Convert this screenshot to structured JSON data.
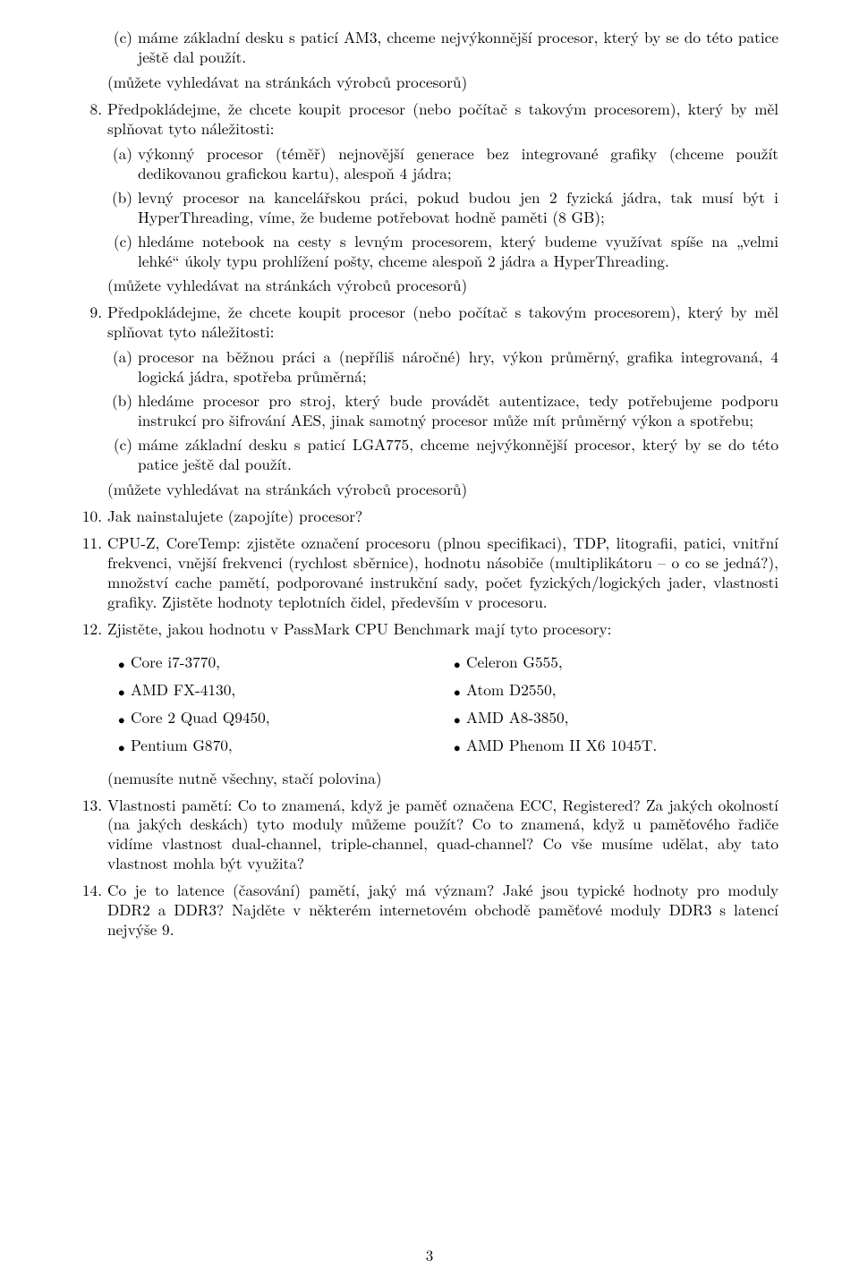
{
  "item7c": {
    "label": "(c)",
    "text": "máme základní desku s paticí AM3, chceme nejvýkonnější procesor, který by se do této patice ještě dal použít."
  },
  "note7": "(můžete vyhledávat na stránkách výrobců procesorů)",
  "q8": {
    "num": "8.",
    "intro": "Předpokládejme, že chcete koupit procesor (nebo počítač s takovým procesorem), který by měl splňovat tyto náležitosti:",
    "a": {
      "label": "(a)",
      "text": "výkonný procesor (téměř) nejnovější generace bez integrované grafiky (chceme použít dedikovanou grafickou kartu), alespoň 4 jádra;"
    },
    "b": {
      "label": "(b)",
      "text": "levný procesor na kancelářskou práci, pokud budou jen 2 fyzická jádra, tak musí být i HyperThreading, víme, že budeme potřebovat hodně paměti (8 GB);"
    },
    "c": {
      "label": "(c)",
      "text": "hledáme notebook na cesty s levným procesorem, který budeme využívat spíše na „velmi lehké“ úkoly typu prohlížení pošty, chceme alespoň 2 jádra a HyperThreading."
    },
    "note": "(můžete vyhledávat na stránkách výrobců procesorů)"
  },
  "q9": {
    "num": "9.",
    "intro": "Předpokládejme, že chcete koupit procesor (nebo počítač s takovým procesorem), který by měl splňovat tyto náležitosti:",
    "a": {
      "label": "(a)",
      "text": "procesor na běžnou práci a (nepříliš náročné) hry, výkon průměrný, grafika integrovaná, 4 logická jádra, spotřeba průměrná;"
    },
    "b": {
      "label": "(b)",
      "text": "hledáme procesor pro stroj, který bude provádět autentizace, tedy potřebujeme podporu instrukcí pro šifrování AES, jinak samotný procesor může mít průměrný výkon a spotřebu;"
    },
    "c": {
      "label": "(c)",
      "text": "máme základní desku s paticí LGA775, chceme nejvýkonnější procesor, který by se do této patice ještě dal použít."
    },
    "note": "(můžete vyhledávat na stránkách výrobců procesorů)"
  },
  "q10": {
    "num": "10.",
    "text": "Jak nainstalujete (zapojíte) procesor?"
  },
  "q11": {
    "num": "11.",
    "text": "CPU-Z, CoreTemp: zjistěte označení procesoru (plnou specifikaci), TDP, litografii, patici, vnitřní frekvenci, vnější frekvenci (rychlost sběrnice), hodnotu násobiče (multiplikátoru – o co se jedná?), množství cache pamětí, podporované instrukční sady, počet fyzických/logických jader, vlastnosti grafiky. Zjistěte hodnoty teplotních čidel, především v procesoru."
  },
  "q12": {
    "num": "12.",
    "intro": "Zjistěte, jakou hodnotu v PassMark CPU Benchmark mají tyto procesory:",
    "left": [
      "Core i7-3770,",
      "AMD FX-4130,",
      "Core 2 Quad Q9450,",
      "Pentium G870,"
    ],
    "right": [
      "Celeron G555,",
      "Atom D2550,",
      "AMD A8-3850,",
      "AMD Phenom II X6 1045T."
    ],
    "note": "(nemusíte nutně všechny, stačí polovina)"
  },
  "q13": {
    "num": "13.",
    "text": "Vlastnosti pamětí: Co to znamená, když je paměť označena ECC, Registered? Za jakých okolností (na jakých deskách) tyto moduly můžeme použít? Co to znamená, když u paměťového řadiče vidíme vlastnost dual-channel, triple-channel, quad-channel? Co vše musíme udělat, aby tato vlastnost mohla být využita?"
  },
  "q14": {
    "num": "14.",
    "text": "Co je to latence (časování) pamětí, jaký má význam? Jaké jsou typické hodnoty pro moduly DDR2 a DDR3? Najděte v některém internetovém obchodě paměťové moduly DDR3 s latencí nejvýše 9."
  },
  "pageNumber": "3"
}
